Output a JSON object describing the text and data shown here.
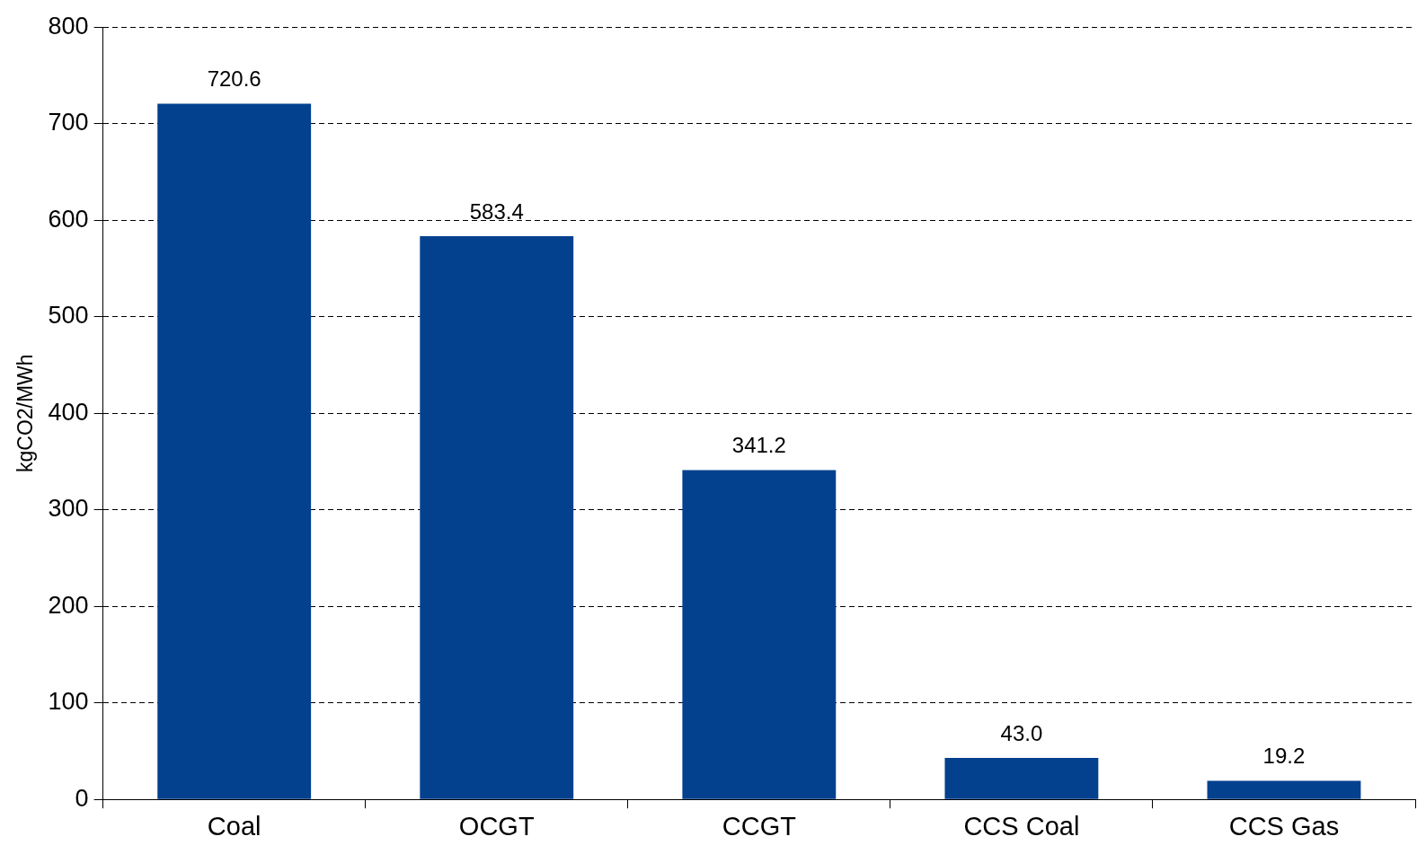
{
  "chart_data": {
    "type": "bar",
    "ylabel": "kgCO2/MWh",
    "categories": [
      "Coal",
      "OCGT",
      "CCGT",
      "CCS Coal",
      "CCS Gas"
    ],
    "values": [
      720.6,
      583.4,
      341.2,
      43.0,
      19.2
    ],
    "value_labels": [
      "720.6",
      "583.4",
      "341.2",
      "43.0",
      "19.2"
    ],
    "color": "#03418f",
    "ylim": [
      0,
      800
    ],
    "yticks": [
      0,
      100,
      200,
      300,
      400,
      500,
      600,
      700,
      800
    ],
    "grid": "y",
    "legend": false
  }
}
